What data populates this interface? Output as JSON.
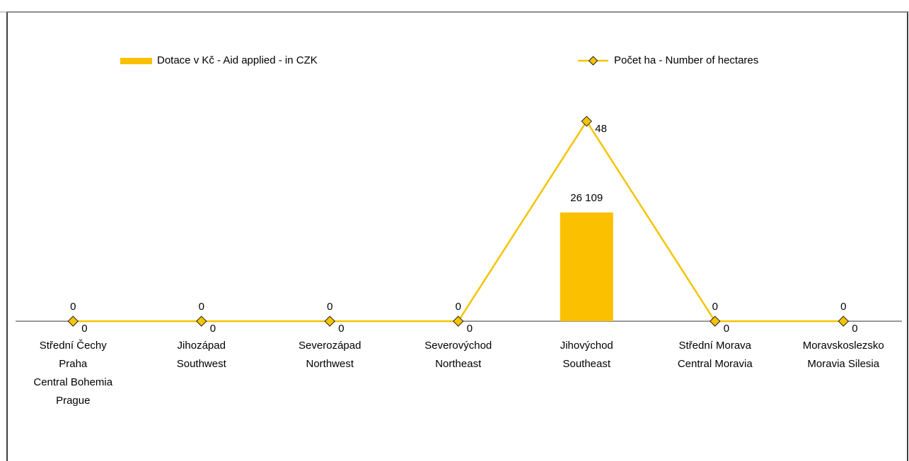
{
  "chart_data": {
    "type": "bar+line",
    "categories": [
      [
        "Střední Čechy",
        "Praha",
        "Central Bohemia",
        "Prague"
      ],
      [
        "Jihozápad",
        "Southwest"
      ],
      [
        "Severozápad",
        "Northwest"
      ],
      [
        "Severovýchod",
        "Northeast"
      ],
      [
        "Jihovýchod",
        "Southeast"
      ],
      [
        "Střední Morava",
        "Central Moravia"
      ],
      [
        "Moravskoslezsko",
        "Moravia Silesia"
      ]
    ],
    "series": [
      {
        "name": "Dotace v Kč - Aid applied - in CZK",
        "type": "bar",
        "color": "#fbc000",
        "values": [
          0,
          0,
          0,
          0,
          26109,
          0,
          0
        ],
        "value_labels": [
          "0",
          "0",
          "0",
          "0",
          "26 109",
          "0",
          "0"
        ]
      },
      {
        "name": "Počet ha - Number of hectares",
        "type": "line",
        "axis": "y2",
        "color": "#f5c400",
        "values": [
          0,
          0,
          0,
          0,
          48,
          0,
          0
        ]
      }
    ],
    "ylim": [
      0,
      70000
    ],
    "y2lim": [
      0,
      70
    ],
    "legend": "top"
  }
}
